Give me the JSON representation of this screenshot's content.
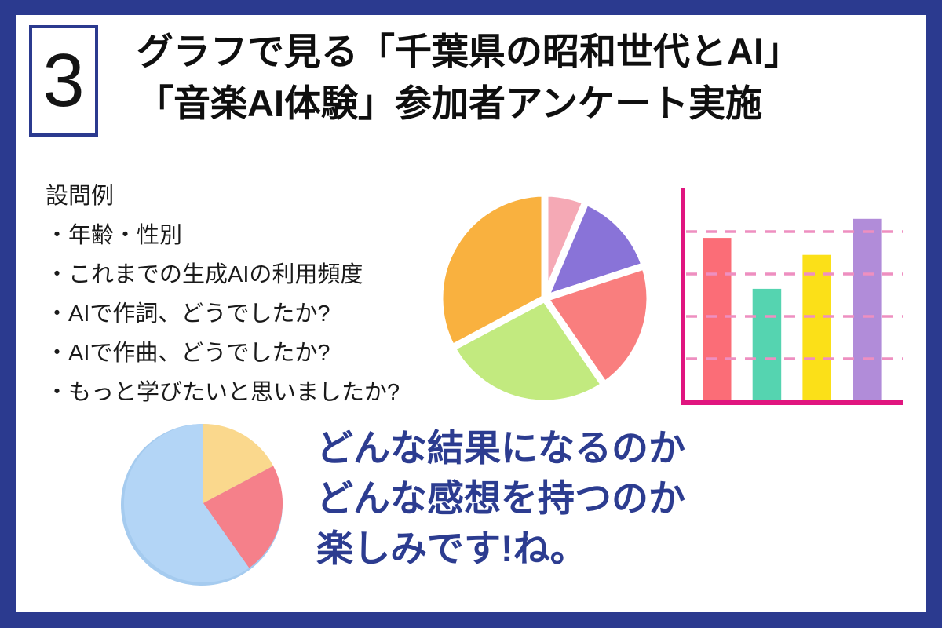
{
  "badge": {
    "number": "3"
  },
  "title": {
    "line1": "グラフで見る「千葉県の昭和世代とAI」",
    "line2": "「音楽AI体験」参加者アンケート実施"
  },
  "questions": {
    "heading": "設問例",
    "items": [
      "・年齢・性別",
      "・これまでの生成AIの利用頻度",
      "・AIで作詞、どうでしたか?",
      "・AIで作曲、どうでしたか?",
      "・もっと学びたいと思いましたか?"
    ]
  },
  "message": {
    "line1": "どんな結果になるのか",
    "line2": "どんな感想を持つのか",
    "line3": "楽しみです!ね。"
  },
  "colors": {
    "frame_navy": "#2b3a8f",
    "title_black": "#0f0f0f",
    "message_navy": "#2c3c90",
    "badge_border": "#2b3a8f"
  },
  "chart_data": [
    {
      "type": "pie",
      "name": "survey-results-pie",
      "labels_shown": false,
      "start_angle": 0,
      "clockwise": true,
      "slice_gap": "white, ~9px",
      "slices": [
        {
          "label": "pink",
          "value": 6.4,
          "color": "#f5a9b5"
        },
        {
          "label": "purple",
          "value": 13.6,
          "color": "#8973d8"
        },
        {
          "label": "red",
          "value": 20.4,
          "color": "#f97e7e"
        },
        {
          "label": "green",
          "value": 26.8,
          "color": "#c2ea7f"
        },
        {
          "label": "orange",
          "value": 32.8,
          "color": "#f9b13f"
        }
      ]
    },
    {
      "type": "bar",
      "name": "survey-results-bar",
      "labels_shown": false,
      "categories": [
        "bar-1",
        "bar-2",
        "bar-3",
        "bar-4"
      ],
      "values": [
        77,
        53,
        69,
        86
      ],
      "bar_colors": [
        "#fb6d77",
        "#55d4b0",
        "#fbe018",
        "#b18cd9"
      ],
      "ylim": [
        0,
        100
      ],
      "gridlines": [
        20,
        40,
        60,
        80
      ],
      "grid_style": "dashed",
      "gridline_color": "#ee8fc0",
      "axis_color": "#e0157f"
    },
    {
      "type": "pie",
      "name": "small-pie-icon",
      "labels_shown": false,
      "start_angle": 0,
      "clockwise": true,
      "rim_color": "#a5cbef",
      "slices": [
        {
          "label": "yellow",
          "value": 17.2,
          "color": "#fad88d"
        },
        {
          "label": "red",
          "value": 23.0,
          "color": "#f5808a"
        },
        {
          "label": "blue",
          "value": 59.8,
          "color": "#b3d5f6"
        }
      ]
    }
  ]
}
